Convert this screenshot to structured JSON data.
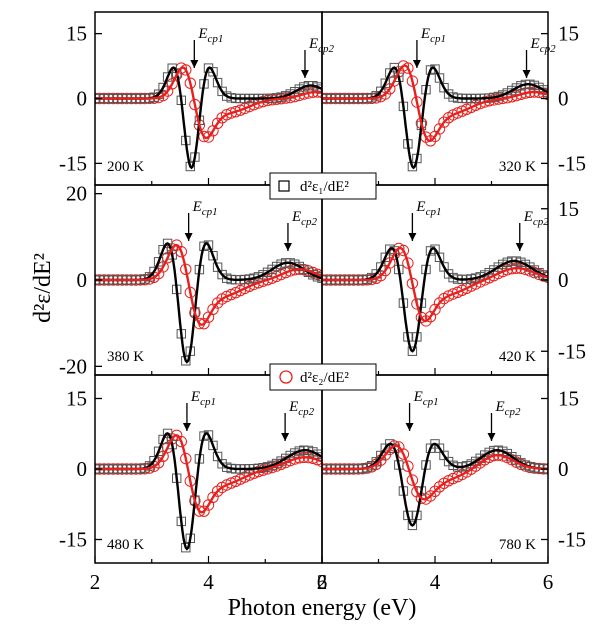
{
  "chart_data": {
    "type": "line",
    "xlabel": "Photon energy (eV)",
    "ylabel": "d²ε/dE²",
    "xlim": [
      2,
      6
    ],
    "x_ticks": [
      "2",
      "4",
      "6"
    ],
    "legend": [
      {
        "name": "d²ε₁/dE²",
        "marker": "square",
        "color": "#000000"
      },
      {
        "name": "d²ε₂/dE²",
        "marker": "circle",
        "color": "#e8211e"
      }
    ],
    "ecp_labels": {
      "main": "E",
      "sub1": "cp1",
      "sub2": "cp2"
    },
    "panels": [
      {
        "temp": "200 K",
        "yticks": [
          "15",
          "0",
          "-15"
        ],
        "yvals": [
          15,
          0,
          -15
        ],
        "ylim": [
          -20,
          20
        ],
        "ecp1": 3.75,
        "ecp2": 5.7,
        "e1": {
          "A": 16,
          "E0": 3.7,
          "w": 0.26
        },
        "e2": {
          "A": 16,
          "E0": 3.75,
          "w": 0.28
        },
        "e1_tail": {
          "A": 3,
          "E0": 5.8,
          "w": 0.35
        },
        "e2_tail": {
          "A": 1.5,
          "E0": 5.9,
          "w": 0.35
        }
      },
      {
        "temp": "320 K",
        "yticks": [
          "15",
          "0",
          "-15"
        ],
        "yvals": [
          15,
          0,
          -15
        ],
        "ylim": [
          -20,
          20
        ],
        "ecp1": 3.68,
        "ecp2": 5.62,
        "e1": {
          "A": 16,
          "E0": 3.62,
          "w": 0.28
        },
        "e2": {
          "A": 17,
          "E0": 3.68,
          "w": 0.3
        },
        "e1_tail": {
          "A": 3.3,
          "E0": 5.65,
          "w": 0.38
        },
        "e2_tail": {
          "A": 1.5,
          "E0": 5.75,
          "w": 0.35
        }
      },
      {
        "temp": "380 K",
        "yticks": [
          "20",
          "0",
          "-20"
        ],
        "yvals": [
          20,
          0,
          -20
        ],
        "ylim": [
          -22,
          22
        ],
        "ecp1": 3.65,
        "ecp2": 5.4,
        "e1": {
          "A": 19,
          "E0": 3.62,
          "w": 0.28
        },
        "e2": {
          "A": 18,
          "E0": 3.65,
          "w": 0.3
        },
        "e1_tail": {
          "A": 4,
          "E0": 5.4,
          "w": 0.4
        },
        "e2_tail": {
          "A": 2.5,
          "E0": 5.6,
          "w": 0.4
        }
      },
      {
        "temp": "420 K",
        "yticks": [
          "15",
          "0",
          "-15"
        ],
        "yvals": [
          15,
          0,
          -15
        ],
        "ylim": [
          -20,
          20
        ],
        "ecp1": 3.6,
        "ecp2": 5.5,
        "e1": {
          "A": 15,
          "E0": 3.6,
          "w": 0.3
        },
        "e2": {
          "A": 15,
          "E0": 3.6,
          "w": 0.3
        },
        "e1_tail": {
          "A": 4,
          "E0": 5.4,
          "w": 0.45
        },
        "e2_tail": {
          "A": 2.5,
          "E0": 5.45,
          "w": 0.45
        }
      },
      {
        "temp": "480 K",
        "yticks": [
          "15",
          "0",
          "-15"
        ],
        "yvals": [
          15,
          0,
          -15
        ],
        "ylim": [
          -20,
          20
        ],
        "ecp1": 3.62,
        "ecp2": 5.35,
        "e1": {
          "A": 17,
          "E0": 3.62,
          "w": 0.28
        },
        "e2": {
          "A": 16,
          "E0": 3.65,
          "w": 0.3
        },
        "e1_tail": {
          "A": 4,
          "E0": 5.7,
          "w": 0.45
        },
        "e2_tail": {
          "A": 2.5,
          "E0": 5.7,
          "w": 0.45
        }
      },
      {
        "temp": "780 K",
        "yticks": [
          "15",
          "0",
          "-15"
        ],
        "yvals": [
          15,
          0,
          -15
        ],
        "ylim": [
          -20,
          20
        ],
        "ecp1": 3.55,
        "ecp2": 5.0,
        "e1": {
          "A": 12,
          "E0": 3.6,
          "w": 0.32
        },
        "e2": {
          "A": 11,
          "E0": 3.55,
          "w": 0.34
        },
        "e1_tail": {
          "A": 4,
          "E0": 5.1,
          "w": 0.4
        },
        "e2_tail": {
          "A": 3,
          "E0": 5.1,
          "w": 0.4
        }
      }
    ]
  }
}
